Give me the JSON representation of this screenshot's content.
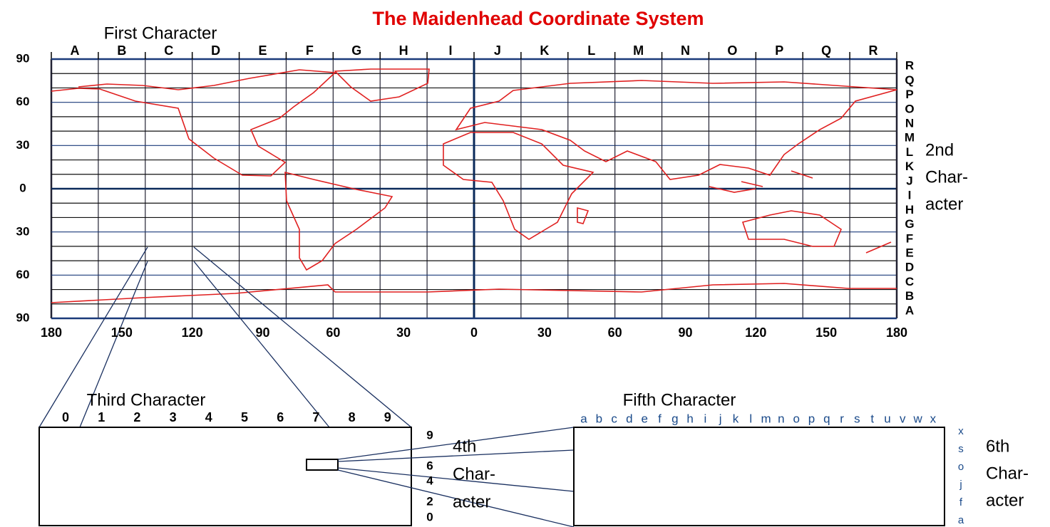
{
  "title": "The Maidenhead Coordinate System",
  "first_character": {
    "label": "First Character",
    "letters": [
      "A",
      "B",
      "C",
      "D",
      "E",
      "F",
      "G",
      "H",
      "I",
      "J",
      "K",
      "L",
      "M",
      "N",
      "O",
      "P",
      "Q",
      "R"
    ]
  },
  "latitude_labels": [
    "90",
    "60",
    "30",
    "0",
    "30",
    "60",
    "90"
  ],
  "longitude_labels": [
    "180",
    "150",
    "120",
    "90",
    "60",
    "30",
    "0",
    "30",
    "60",
    "90",
    "120",
    "150",
    "180"
  ],
  "second_character": {
    "label_lines": [
      "2nd",
      "Char-",
      "acter"
    ],
    "letters": [
      "A",
      "B",
      "C",
      "D",
      "E",
      "F",
      "G",
      "H",
      "I",
      "J",
      "K",
      "L",
      "M",
      "N",
      "O",
      "P",
      "Q",
      "R"
    ]
  },
  "third_character": {
    "label": "Third Character",
    "digits": [
      "0",
      "1",
      "2",
      "3",
      "4",
      "5",
      "6",
      "7",
      "8",
      "9"
    ]
  },
  "fourth_character": {
    "label_lines": [
      "4th",
      "Char-",
      "acter"
    ],
    "digits": [
      "9",
      "6",
      "4",
      "2",
      "0"
    ]
  },
  "fifth_character": {
    "label": "Fifth Character",
    "letters": [
      "a",
      "b",
      "c",
      "d",
      "e",
      "f",
      "g",
      "h",
      "i",
      "j",
      "k",
      "l",
      "m",
      "n",
      "o",
      "p",
      "q",
      "r",
      "s",
      "t",
      "u",
      "v",
      "w",
      "x"
    ]
  },
  "sixth_character": {
    "label_lines": [
      "6th",
      "Char-",
      "acter"
    ],
    "letters": [
      "x",
      "s",
      "o",
      "j",
      "f",
      "a"
    ]
  }
}
